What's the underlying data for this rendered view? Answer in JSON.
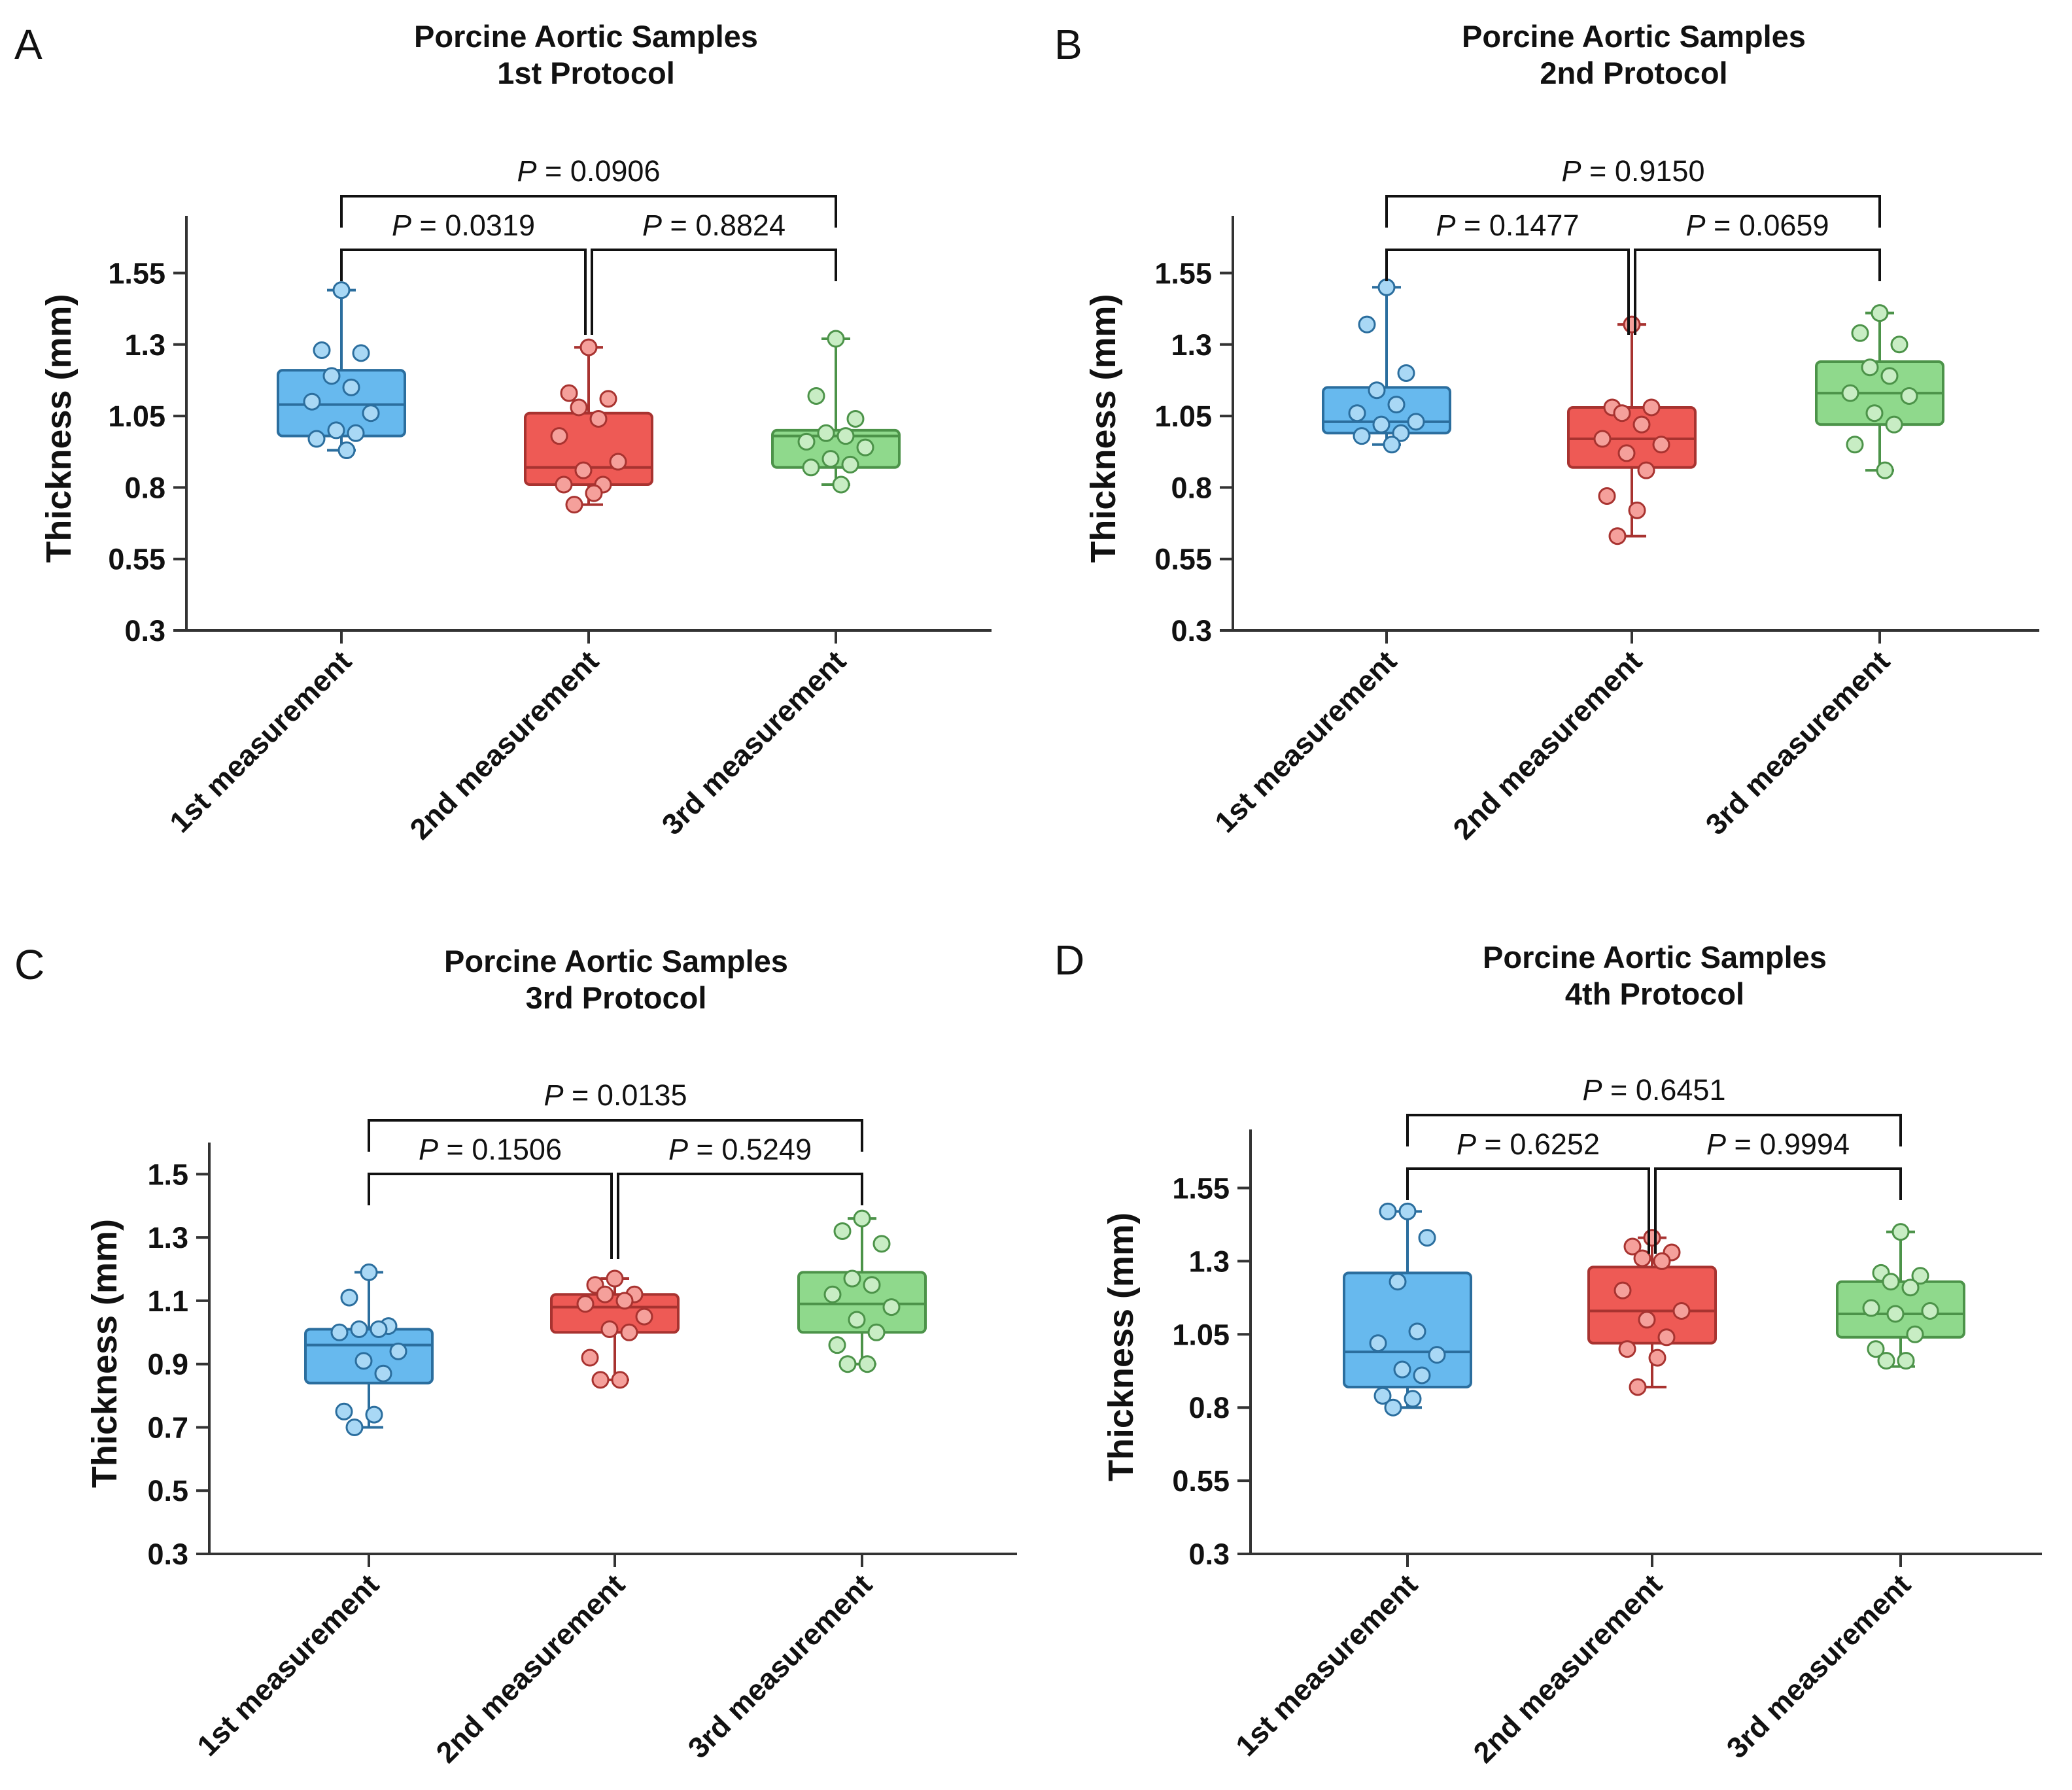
{
  "figure": {
    "colors": {
      "blue_fill": "#67B9EE",
      "blue_stroke": "#2B6E9E",
      "blue_dot": "#A9D8F5",
      "red_fill": "#EE5A55",
      "red_stroke": "#A83330",
      "red_dot": "#F5A09B",
      "green_fill": "#8FD98C",
      "green_stroke": "#4C9349",
      "green_dot": "#C8EDC4"
    }
  },
  "chart_data": [
    {
      "panel": "A",
      "type": "box",
      "title": [
        "Porcine Aortic Samples",
        "1st Protocol"
      ],
      "ylabel": "Thickness (mm)",
      "ylim": [
        0.3,
        1.75
      ],
      "yticks": [
        0.3,
        0.55,
        0.8,
        1.05,
        1.3,
        1.55
      ],
      "ytick_labels": [
        "0.3",
        "0.55",
        "0.8",
        "1.05",
        "1.3",
        "1.55"
      ],
      "categories": [
        "1st measurement",
        "2nd measurement",
        "3rd measurement"
      ],
      "boxes": [
        {
          "min": 0.93,
          "q1": 0.98,
          "median": 1.09,
          "q3": 1.21,
          "max": 1.49
        },
        {
          "min": 0.74,
          "q1": 0.81,
          "median": 0.87,
          "q3": 1.06,
          "max": 1.29
        },
        {
          "min": 0.81,
          "q1": 0.87,
          "median": 0.98,
          "q3": 1.0,
          "max": 1.32
        }
      ],
      "points": [
        [
          1.49,
          1.28,
          1.27,
          1.19,
          1.15,
          1.1,
          1.06,
          1.0,
          0.99,
          0.97,
          0.93
        ],
        [
          1.29,
          1.13,
          1.11,
          1.08,
          1.04,
          0.98,
          0.89,
          0.86,
          0.81,
          0.81,
          0.78,
          0.74
        ],
        [
          1.32,
          1.12,
          1.04,
          0.99,
          0.98,
          0.96,
          0.94,
          0.9,
          0.88,
          0.87,
          0.81
        ]
      ],
      "comparisons": [
        {
          "from": 0,
          "to": 1,
          "level": 1,
          "p_italic": "P",
          "p_text": " = 0.0319"
        },
        {
          "from": 1,
          "to": 2,
          "level": 1,
          "p_italic": "P",
          "p_text": " = 0.8824"
        },
        {
          "from": 0,
          "to": 2,
          "level": 2,
          "p_italic": "P",
          "p_text": " = 0.0906"
        }
      ]
    },
    {
      "panel": "B",
      "type": "box",
      "title": [
        "Porcine Aortic Samples",
        "2nd Protocol"
      ],
      "ylabel": "Thickness (mm)",
      "ylim": [
        0.3,
        1.75
      ],
      "yticks": [
        0.3,
        0.55,
        0.8,
        1.05,
        1.3,
        1.55
      ],
      "ytick_labels": [
        "0.3",
        "0.55",
        "0.8",
        "1.05",
        "1.3",
        "1.55"
      ],
      "categories": [
        "1st measurement",
        "2nd measurement",
        "3rd measurement"
      ],
      "boxes": [
        {
          "min": 0.95,
          "q1": 0.99,
          "median": 1.03,
          "q3": 1.15,
          "max": 1.5
        },
        {
          "min": 0.63,
          "q1": 0.87,
          "median": 0.97,
          "q3": 1.08,
          "max": 1.37
        },
        {
          "min": 0.86,
          "q1": 1.02,
          "median": 1.13,
          "q3": 1.24,
          "max": 1.41
        }
      ],
      "points": [
        [
          1.5,
          1.37,
          1.2,
          1.14,
          1.09,
          1.06,
          1.03,
          1.02,
          0.99,
          0.98,
          0.95
        ],
        [
          1.37,
          1.08,
          1.08,
          1.06,
          1.02,
          0.97,
          0.95,
          0.92,
          0.86,
          0.77,
          0.72,
          0.63
        ],
        [
          1.41,
          1.34,
          1.3,
          1.22,
          1.19,
          1.13,
          1.12,
          1.06,
          1.02,
          0.95,
          0.86
        ]
      ],
      "comparisons": [
        {
          "from": 0,
          "to": 1,
          "level": 1,
          "p_italic": "P",
          "p_text": " = 0.1477"
        },
        {
          "from": 1,
          "to": 2,
          "level": 1,
          "p_italic": "P",
          "p_text": " = 0.0659"
        },
        {
          "from": 0,
          "to": 2,
          "level": 2,
          "p_italic": "P",
          "p_text": " = 0.9150"
        }
      ]
    },
    {
      "panel": "C",
      "type": "box",
      "title": [
        "Porcine Aortic Samples",
        "3rd Protocol"
      ],
      "ylabel": "Thickness (mm)",
      "ylim": [
        0.3,
        1.6
      ],
      "yticks": [
        0.3,
        0.5,
        0.7,
        0.9,
        1.1,
        1.3,
        1.5
      ],
      "ytick_labels": [
        "0.3",
        "0.5",
        "0.7",
        "0.9",
        "1.1",
        "1.3",
        "1.5"
      ],
      "categories": [
        "1st measurement",
        "2nd measurement",
        "3rd measurement"
      ],
      "boxes": [
        {
          "min": 0.7,
          "q1": 0.84,
          "median": 0.96,
          "q3": 1.01,
          "max": 1.19
        },
        {
          "min": 0.85,
          "q1": 1.0,
          "median": 1.08,
          "q3": 1.12,
          "max": 1.17
        },
        {
          "min": 0.9,
          "q1": 1.0,
          "median": 1.09,
          "q3": 1.19,
          "max": 1.36
        }
      ],
      "points": [
        [
          1.19,
          1.11,
          1.02,
          1.01,
          1.01,
          1.0,
          0.94,
          0.91,
          0.87,
          0.75,
          0.74,
          0.7
        ],
        [
          1.17,
          1.15,
          1.12,
          1.12,
          1.1,
          1.09,
          1.05,
          1.01,
          1.0,
          0.92,
          0.85,
          0.85
        ],
        [
          1.36,
          1.32,
          1.28,
          1.17,
          1.15,
          1.12,
          1.08,
          1.04,
          1.0,
          0.96,
          0.9,
          0.9
        ]
      ],
      "comparisons": [
        {
          "from": 0,
          "to": 1,
          "level": 1,
          "p_italic": "P",
          "p_text": " = 0.1506"
        },
        {
          "from": 1,
          "to": 2,
          "level": 1,
          "p_italic": "P",
          "p_text": " = 0.5249"
        },
        {
          "from": 0,
          "to": 2,
          "level": 2,
          "p_italic": "P",
          "p_text": " = 0.0135"
        }
      ]
    },
    {
      "panel": "D",
      "type": "box",
      "title": [
        "Porcine Aortic Samples",
        "4th Protocol"
      ],
      "ylabel": "Thickness (mm)",
      "ylim": [
        0.3,
        1.75
      ],
      "yticks": [
        0.3,
        0.55,
        0.8,
        1.05,
        1.3,
        1.55
      ],
      "ytick_labels": [
        "0.3",
        "0.55",
        "0.8",
        "1.05",
        "1.3",
        "1.55"
      ],
      "categories": [
        "1st measurement",
        "2nd measurement",
        "3rd measurement"
      ],
      "boxes": [
        {
          "min": 0.8,
          "q1": 0.87,
          "median": 0.99,
          "q3": 1.26,
          "max": 1.47
        },
        {
          "min": 0.87,
          "q1": 1.02,
          "median": 1.13,
          "q3": 1.28,
          "max": 1.38
        },
        {
          "min": 0.94,
          "q1": 1.04,
          "median": 1.12,
          "q3": 1.23,
          "max": 1.4
        }
      ],
      "points": [
        [
          1.47,
          1.47,
          1.38,
          1.23,
          1.06,
          1.02,
          0.98,
          0.93,
          0.91,
          0.84,
          0.83,
          0.8
        ],
        [
          1.38,
          1.35,
          1.33,
          1.31,
          1.3,
          1.2,
          1.13,
          1.1,
          1.04,
          1.0,
          0.97,
          0.87
        ],
        [
          1.4,
          1.26,
          1.25,
          1.23,
          1.21,
          1.14,
          1.13,
          1.12,
          1.05,
          1.0,
          0.96,
          0.96
        ]
      ],
      "comparisons": [
        {
          "from": 0,
          "to": 1,
          "level": 1,
          "p_italic": "P",
          "p_text": " = 0.6252"
        },
        {
          "from": 1,
          "to": 2,
          "level": 1,
          "p_italic": "P",
          "p_text": " = 0.9994"
        },
        {
          "from": 0,
          "to": 2,
          "level": 2,
          "p_italic": "P",
          "p_text": " = 0.6451"
        }
      ]
    }
  ]
}
